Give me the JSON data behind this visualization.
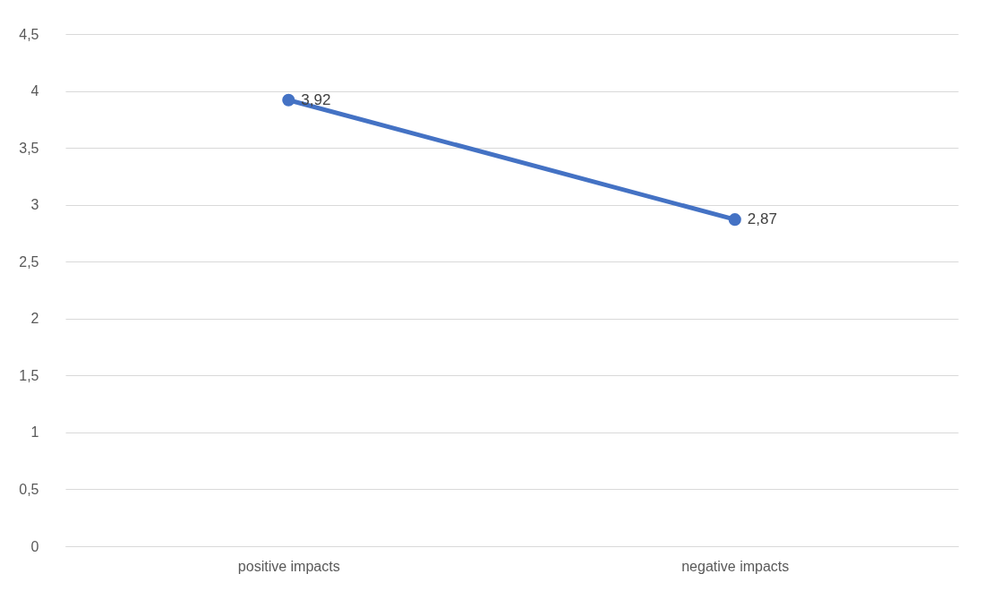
{
  "chart_data": {
    "type": "line",
    "categories": [
      "positive impacts",
      "negative impacts"
    ],
    "series": [
      {
        "color": "#4472c4",
        "values": [
          3.92,
          2.87
        ],
        "value_labels": [
          "3,92",
          "2,87"
        ]
      }
    ],
    "ylim": [
      0,
      4.5
    ],
    "yticks": [
      {
        "value": 0,
        "label": "0"
      },
      {
        "value": 0.5,
        "label": "0,5"
      },
      {
        "value": 1,
        "label": "1"
      },
      {
        "value": 1.5,
        "label": "1,5"
      },
      {
        "value": 2,
        "label": "2"
      },
      {
        "value": 2.5,
        "label": "2,5"
      },
      {
        "value": 3,
        "label": "3"
      },
      {
        "value": 3.5,
        "label": "3,5"
      },
      {
        "value": 4,
        "label": "4"
      },
      {
        "value": 4.5,
        "label": "4,5"
      }
    ],
    "grid": "y",
    "marker": "circle",
    "line_style": "solid"
  }
}
